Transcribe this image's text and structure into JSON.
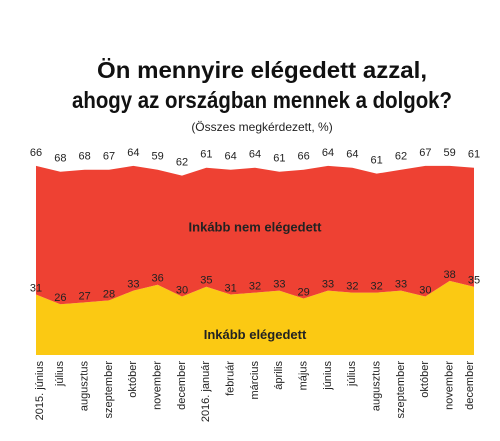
{
  "chart_data": {
    "type": "stacked-area",
    "title": [
      "Ön mennyire elégedett azzal,",
      "ahogy az országban mennek a dolgok?"
    ],
    "subtitle": "(Összes megkérdezett, %)",
    "categories": [
      "2015. június",
      "július",
      "augusztus",
      "szeptember",
      "október",
      "november",
      "december",
      "2016. január",
      "február",
      "március",
      "április",
      "május",
      "június",
      "július",
      "augusztus",
      "szeptember",
      "október",
      "november",
      "december"
    ],
    "series": [
      {
        "name": "Inkább elégedett",
        "color": "#fbc913",
        "values": [
          31,
          26,
          27,
          28,
          33,
          36,
          30,
          35,
          31,
          32,
          33,
          29,
          33,
          32,
          32,
          33,
          30,
          38,
          35
        ]
      },
      {
        "name": "Inkább nem elégedett",
        "color": "#ee4133",
        "values": [
          66,
          68,
          68,
          67,
          64,
          59,
          62,
          61,
          64,
          64,
          61,
          66,
          64,
          64,
          61,
          62,
          67,
          59,
          61
        ]
      }
    ],
    "ylim": [
      0,
      100
    ]
  }
}
